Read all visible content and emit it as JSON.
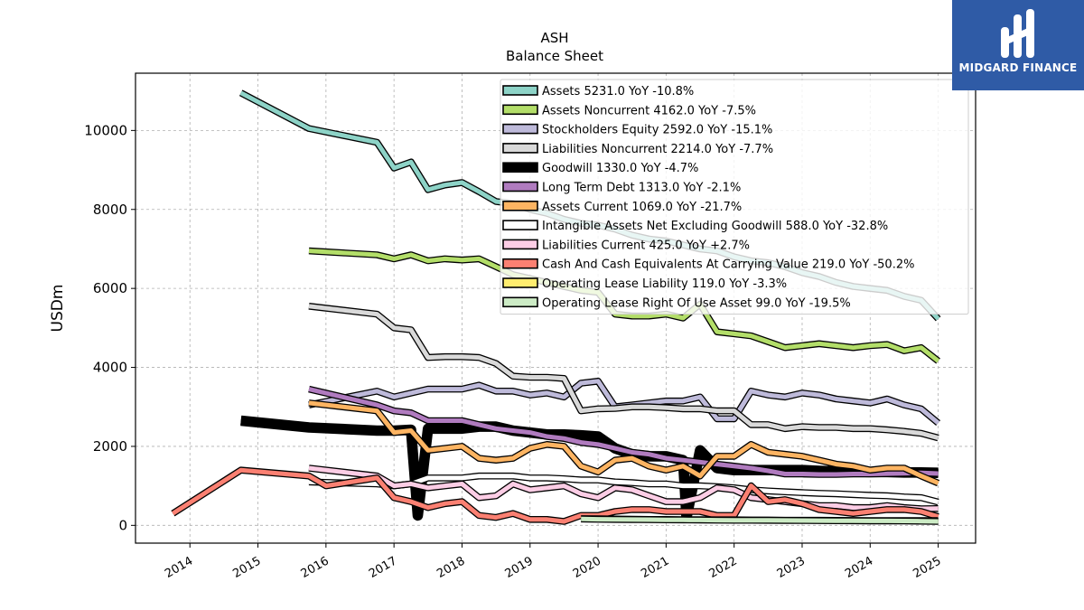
{
  "chart_data": {
    "type": "line",
    "title": "ASH",
    "subtitle": "Balance  Sheet",
    "ylabel": "USDm",
    "xlabel": "",
    "xlim": [
      2013.2,
      2025.55
    ],
    "ylim": [
      -450,
      11450
    ],
    "x_ticks": [
      "2014",
      "2015",
      "2016",
      "2017",
      "2018",
      "2019",
      "2020",
      "2021",
      "2022",
      "2023",
      "2024",
      "2025"
    ],
    "y_ticks": [
      0,
      2000,
      4000,
      6000,
      8000,
      10000
    ],
    "y_tick_labels": [
      "0",
      "2000",
      "4000",
      "6000",
      "8000",
      "10000"
    ],
    "grid": true,
    "legend_position": "top-right",
    "series": [
      {
        "name": "Assets  5231.0 YoY -10.8%",
        "color": "#8dd3c7",
        "width": 5,
        "x": [
          2014.75,
          2015.75,
          2016.75,
          2017.0,
          2017.25,
          2017.5,
          2017.75,
          2018.0,
          2018.25,
          2018.5,
          2018.75,
          2019.0,
          2019.25,
          2019.5,
          2019.75,
          2020.0,
          2020.25,
          2020.5,
          2020.75,
          2021.0,
          2021.25,
          2021.5,
          2021.75,
          2022.0,
          2022.25,
          2022.5,
          2022.75,
          2023.0,
          2023.25,
          2023.5,
          2023.75,
          2024.0,
          2024.25,
          2024.5,
          2024.75,
          2025.0
        ],
        "y": [
          10950,
          10050,
          9700,
          9050,
          9200,
          8500,
          8620,
          8680,
          8450,
          8200,
          8150,
          8000,
          7900,
          7750,
          7650,
          7600,
          7500,
          7350,
          7250,
          7200,
          7100,
          7000,
          6950,
          6800,
          6700,
          6650,
          6550,
          6400,
          6300,
          6150,
          6050,
          6000,
          5950,
          5800,
          5700,
          5231
        ]
      },
      {
        "name": "Assets Noncurrent  4162.0 YoY -7.5%",
        "color": "#b3de69",
        "width": 5,
        "x": [
          2015.75,
          2016.75,
          2017.0,
          2017.25,
          2017.5,
          2017.75,
          2018.0,
          2018.25,
          2018.5,
          2018.75,
          2019.0,
          2019.25,
          2019.5,
          2019.75,
          2020.0,
          2020.25,
          2020.5,
          2020.75,
          2021.0,
          2021.25,
          2021.5,
          2021.75,
          2022.0,
          2022.25,
          2022.5,
          2022.75,
          2023.0,
          2023.25,
          2023.5,
          2023.75,
          2024.0,
          2024.25,
          2024.5,
          2024.75,
          2025.0
        ],
        "y": [
          6950,
          6850,
          6750,
          6850,
          6700,
          6750,
          6720,
          6750,
          6550,
          6350,
          6250,
          6150,
          6050,
          5950,
          5900,
          5350,
          5300,
          5300,
          5350,
          5250,
          5600,
          4900,
          4850,
          4800,
          4650,
          4500,
          4550,
          4600,
          4550,
          4500,
          4550,
          4580,
          4420,
          4500,
          4162
        ]
      },
      {
        "name": "Stockholders Equity  2592.0 YoY -15.1%",
        "color": "#bebada",
        "width": 5,
        "x": [
          2015.75,
          2016.75,
          2017.0,
          2017.25,
          2017.5,
          2017.75,
          2018.0,
          2018.25,
          2018.5,
          2018.75,
          2019.0,
          2019.25,
          2019.5,
          2019.75,
          2020.0,
          2020.25,
          2020.5,
          2020.75,
          2021.0,
          2021.25,
          2021.5,
          2021.75,
          2022.0,
          2022.25,
          2022.5,
          2022.75,
          2023.0,
          2023.25,
          2023.5,
          2023.75,
          2024.0,
          2024.25,
          2024.5,
          2024.75,
          2025.0
        ],
        "y": [
          3050,
          3400,
          3250,
          3350,
          3450,
          3450,
          3450,
          3550,
          3400,
          3400,
          3300,
          3350,
          3250,
          3600,
          3650,
          3000,
          3050,
          3100,
          3150,
          3150,
          3250,
          2700,
          2700,
          3400,
          3300,
          3250,
          3350,
          3300,
          3200,
          3150,
          3100,
          3200,
          3050,
          2950,
          2592
        ]
      },
      {
        "name": "Liabilities Noncurrent  2214.0 YoY -7.7%",
        "color": "#d9d9d9",
        "width": 5,
        "x": [
          2015.75,
          2016.75,
          2017.0,
          2017.25,
          2017.5,
          2017.75,
          2018.0,
          2018.25,
          2018.5,
          2018.75,
          2019.0,
          2019.25,
          2019.5,
          2019.75,
          2020.0,
          2020.25,
          2020.5,
          2020.75,
          2021.0,
          2021.25,
          2021.5,
          2021.75,
          2022.0,
          2022.25,
          2022.5,
          2022.75,
          2023.0,
          2023.25,
          2023.5,
          2023.75,
          2024.0,
          2024.25,
          2024.5,
          2024.75,
          2025.0
        ],
        "y": [
          5550,
          5350,
          5000,
          4950,
          4250,
          4270,
          4270,
          4250,
          4100,
          3780,
          3750,
          3750,
          3720,
          2900,
          2950,
          2960,
          3000,
          3000,
          2980,
          2950,
          2950,
          2900,
          2900,
          2550,
          2550,
          2450,
          2500,
          2480,
          2480,
          2450,
          2450,
          2420,
          2380,
          2330,
          2214
        ]
      },
      {
        "name": "Goodwill  1330.0 YoY -4.7%",
        "color": "#000000",
        "width": 9,
        "x": [
          2014.75,
          2015.75,
          2016.75,
          2017.0,
          2017.25,
          2017.35,
          2017.5,
          2017.75,
          2018.0,
          2018.25,
          2018.5,
          2018.75,
          2019.0,
          2019.25,
          2019.5,
          2019.75,
          2020.0,
          2020.25,
          2020.5,
          2020.75,
          2021.0,
          2021.25,
          2021.3,
          2021.5,
          2021.75,
          2022.0,
          2022.25,
          2022.5,
          2022.75,
          2023.0,
          2023.25,
          2023.5,
          2023.75,
          2024.0,
          2024.25,
          2024.5,
          2024.75,
          2025.0
        ],
        "y": [
          2650,
          2480,
          2400,
          2400,
          2420,
          250,
          2450,
          2450,
          2450,
          2500,
          2500,
          2400,
          2350,
          2300,
          2300,
          2280,
          2250,
          1950,
          1800,
          1750,
          1750,
          1650,
          200,
          1900,
          1450,
          1400,
          1400,
          1400,
          1400,
          1400,
          1380,
          1370,
          1360,
          1350,
          1350,
          1340,
          1340,
          1330
        ]
      },
      {
        "name": "Long Term Debt  1313.0 YoY -2.1%",
        "color": "#b07bbf",
        "width": 5,
        "x": [
          2015.75,
          2016.75,
          2017.0,
          2017.25,
          2017.5,
          2017.75,
          2018.0,
          2018.25,
          2018.5,
          2018.75,
          2019.0,
          2019.25,
          2019.5,
          2019.75,
          2020.0,
          2020.25,
          2020.5,
          2020.75,
          2021.0,
          2021.25,
          2021.5,
          2021.75,
          2022.0,
          2022.25,
          2022.5,
          2022.75,
          2023.0,
          2023.25,
          2023.5,
          2023.75,
          2024.0,
          2024.25,
          2024.5,
          2024.75,
          2025.0
        ],
        "y": [
          3450,
          3050,
          2900,
          2850,
          2650,
          2650,
          2650,
          2550,
          2450,
          2400,
          2350,
          2250,
          2200,
          2100,
          2050,
          1950,
          1850,
          1800,
          1700,
          1650,
          1600,
          1550,
          1500,
          1450,
          1380,
          1300,
          1300,
          1290,
          1290,
          1300,
          1300,
          1310,
          1320,
          1330,
          1313
        ]
      },
      {
        "name": "Assets Current  1069.0 YoY -21.7%",
        "color": "#fdb462",
        "width": 5,
        "x": [
          2015.75,
          2016.75,
          2017.0,
          2017.25,
          2017.5,
          2017.75,
          2018.0,
          2018.25,
          2018.5,
          2018.75,
          2019.0,
          2019.25,
          2019.5,
          2019.75,
          2020.0,
          2020.25,
          2020.5,
          2020.75,
          2021.0,
          2021.25,
          2021.5,
          2021.75,
          2022.0,
          2022.25,
          2022.5,
          2022.75,
          2023.0,
          2023.25,
          2023.5,
          2023.75,
          2024.0,
          2024.25,
          2024.5,
          2024.75,
          2025.0
        ],
        "y": [
          3100,
          2900,
          2350,
          2400,
          1900,
          1950,
          2000,
          1700,
          1650,
          1700,
          1950,
          2050,
          2000,
          1500,
          1350,
          1650,
          1700,
          1500,
          1400,
          1500,
          1250,
          1750,
          1750,
          2050,
          1850,
          1800,
          1750,
          1650,
          1550,
          1500,
          1400,
          1450,
          1450,
          1250,
          1069
        ]
      },
      {
        "name": "Intangible Assets Net Excluding Goodwill  588.0 YoY -32.8%",
        "color": "#ffffff",
        "width": 5,
        "x": [
          2015.75,
          2016.75,
          2017.0,
          2017.25,
          2017.5,
          2017.75,
          2018.0,
          2018.25,
          2018.5,
          2018.75,
          2019.0,
          2019.25,
          2019.5,
          2019.75,
          2020.0,
          2020.25,
          2020.5,
          2020.75,
          2021.0,
          2021.25,
          2021.5,
          2021.75,
          2022.0,
          2022.25,
          2022.5,
          2022.75,
          2023.0,
          2023.25,
          2023.5,
          2023.75,
          2024.0,
          2024.25,
          2024.5,
          2024.75,
          2025.0
        ],
        "y": [
          1100,
          1050,
          1000,
          1050,
          1200,
          1200,
          1200,
          1250,
          1250,
          1250,
          1200,
          1200,
          1180,
          1150,
          1150,
          1100,
          1080,
          1050,
          1050,
          1000,
          1000,
          980,
          950,
          900,
          870,
          850,
          830,
          810,
          800,
          780,
          760,
          750,
          720,
          700,
          588
        ]
      },
      {
        "name": "Liabilities Current  425.0 YoY +2.7%",
        "color": "#fccde5",
        "width": 5,
        "x": [
          2015.75,
          2016.75,
          2017.0,
          2017.25,
          2017.5,
          2017.75,
          2018.0,
          2018.25,
          2018.5,
          2018.75,
          2019.0,
          2019.25,
          2019.5,
          2019.75,
          2020.0,
          2020.25,
          2020.5,
          2020.75,
          2021.0,
          2021.25,
          2021.5,
          2021.75,
          2022.0,
          2022.25,
          2022.5,
          2022.75,
          2023.0,
          2023.25,
          2023.5,
          2023.75,
          2024.0,
          2024.25,
          2024.5,
          2024.75,
          2025.0
        ],
        "y": [
          1450,
          1250,
          1000,
          1050,
          950,
          1000,
          1050,
          700,
          750,
          1050,
          900,
          950,
          1000,
          800,
          700,
          950,
          900,
          750,
          600,
          600,
          700,
          950,
          900,
          700,
          650,
          600,
          550,
          500,
          500,
          450,
          450,
          500,
          450,
          420,
          425
        ]
      },
      {
        "name": "Cash And Cash Equivalents At Carrying Value  219.0 YoY -50.2%",
        "color": "#fb8072",
        "width": 5,
        "x": [
          2013.75,
          2014.75,
          2015.75,
          2016.0,
          2016.75,
          2017.0,
          2017.25,
          2017.5,
          2017.75,
          2018.0,
          2018.25,
          2018.5,
          2018.75,
          2019.0,
          2019.25,
          2019.5,
          2019.75,
          2020.0,
          2020.25,
          2020.5,
          2020.75,
          2021.0,
          2021.25,
          2021.5,
          2021.75,
          2022.0,
          2022.25,
          2022.5,
          2022.75,
          2023.0,
          2023.25,
          2023.5,
          2023.75,
          2024.0,
          2024.25,
          2024.5,
          2024.75,
          2025.0
        ],
        "y": [
          300,
          1400,
          1250,
          1000,
          1200,
          700,
          600,
          450,
          550,
          600,
          250,
          200,
          300,
          150,
          150,
          100,
          250,
          250,
          350,
          400,
          400,
          350,
          350,
          350,
          250,
          250,
          1000,
          600,
          650,
          550,
          400,
          350,
          300,
          350,
          400,
          400,
          350,
          219
        ]
      },
      {
        "name": "Operating Lease Liability  119.0 YoY -3.3%",
        "color": "#ffed6f",
        "width": 5,
        "x": [
          2019.75,
          2020.0,
          2020.25,
          2020.5,
          2020.75,
          2021.0,
          2021.25,
          2021.5,
          2021.75,
          2022.0,
          2022.25,
          2022.5,
          2022.75,
          2023.0,
          2023.25,
          2023.5,
          2023.75,
          2024.0,
          2024.25,
          2024.5,
          2024.75,
          2025.0
        ],
        "y": [
          170,
          165,
          160,
          155,
          150,
          150,
          145,
          145,
          140,
          140,
          135,
          135,
          130,
          130,
          128,
          126,
          124,
          123,
          122,
          121,
          120,
          119
        ]
      },
      {
        "name": "Operating Lease Right Of Use Asset  99.0 YoY -19.5%",
        "color": "#ccebc5",
        "width": 5,
        "x": [
          2019.75,
          2020.0,
          2020.25,
          2020.5,
          2020.75,
          2021.0,
          2021.25,
          2021.5,
          2021.75,
          2022.0,
          2022.25,
          2022.5,
          2022.75,
          2023.0,
          2023.25,
          2023.5,
          2023.75,
          2024.0,
          2024.25,
          2024.5,
          2024.75,
          2025.0
        ],
        "y": [
          160,
          155,
          150,
          148,
          145,
          140,
          138,
          135,
          132,
          130,
          128,
          126,
          124,
          122,
          120,
          118,
          116,
          114,
          112,
          110,
          105,
          99
        ]
      }
    ]
  },
  "logo": {
    "text": "MIDGARD FINANCE",
    "bg_color": "#2f5ba6"
  }
}
